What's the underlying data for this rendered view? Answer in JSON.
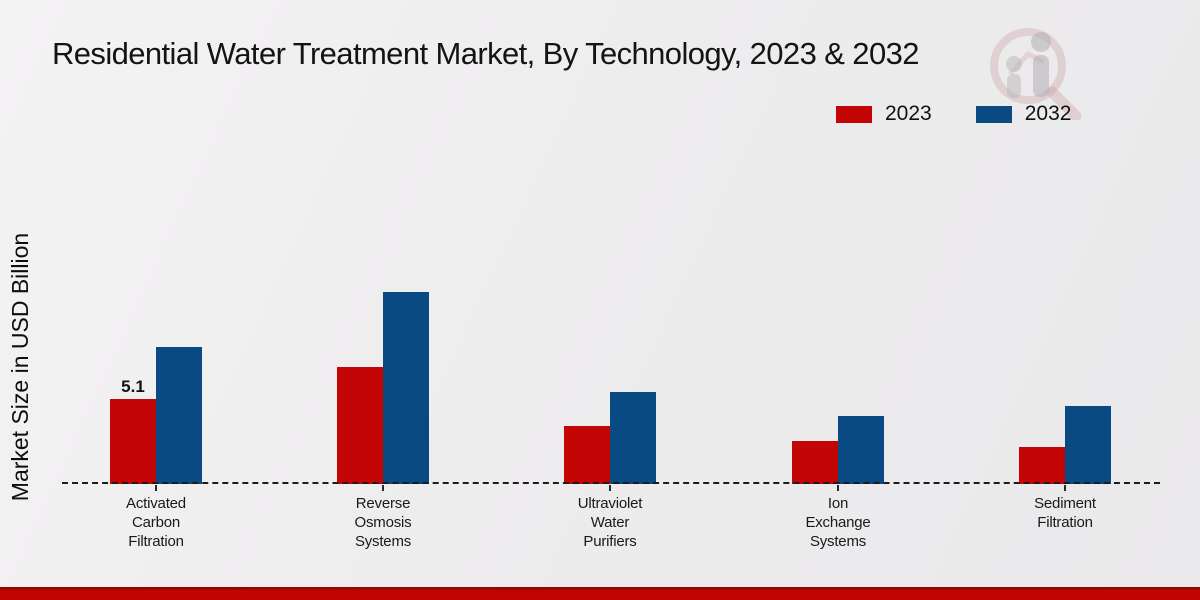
{
  "title": "Residential Water Treatment Market, By Technology, 2023 & 2032",
  "y_axis_label": "Market Size in USD Billion",
  "colors": {
    "series_2023": "#c40505",
    "series_2032": "#084a81",
    "baseline": "#1c1c1c",
    "bottom_strip": "#c00500",
    "background": "#eeedee"
  },
  "chart_data": {
    "type": "bar",
    "title": "Residential Water Treatment Market, By Technology, 2023 & 2032",
    "ylabel": "Market Size in USD Billion",
    "xlabel": "",
    "unit": "USD Billion",
    "grid": false,
    "baseline_style": "dashed",
    "legend_position": "top-right",
    "categories": [
      "Activated Carbon Filtration",
      "Reverse Osmosis Systems",
      "Ultraviolet Water Purifiers",
      "Ion Exchange Systems",
      "Sediment Filtration"
    ],
    "category_lines": [
      [
        "Activated",
        "Carbon",
        "Filtration"
      ],
      [
        "Reverse",
        "Osmosis",
        "Systems"
      ],
      [
        "Ultraviolet",
        "Water",
        "Purifiers"
      ],
      [
        "Ion",
        "Exchange",
        "Systems"
      ],
      [
        "Sediment",
        "Filtration"
      ]
    ],
    "series": [
      {
        "name": "2023",
        "color": "#c40505",
        "values": [
          5.1,
          7.0,
          3.5,
          2.6,
          2.2
        ]
      },
      {
        "name": "2032",
        "color": "#084a81",
        "values": [
          8.2,
          11.5,
          5.5,
          4.1,
          4.7
        ]
      }
    ],
    "data_labels": [
      {
        "series_index": 0,
        "category_index": 0,
        "text": "5.1"
      }
    ],
    "ylim": [
      0,
      12
    ]
  }
}
